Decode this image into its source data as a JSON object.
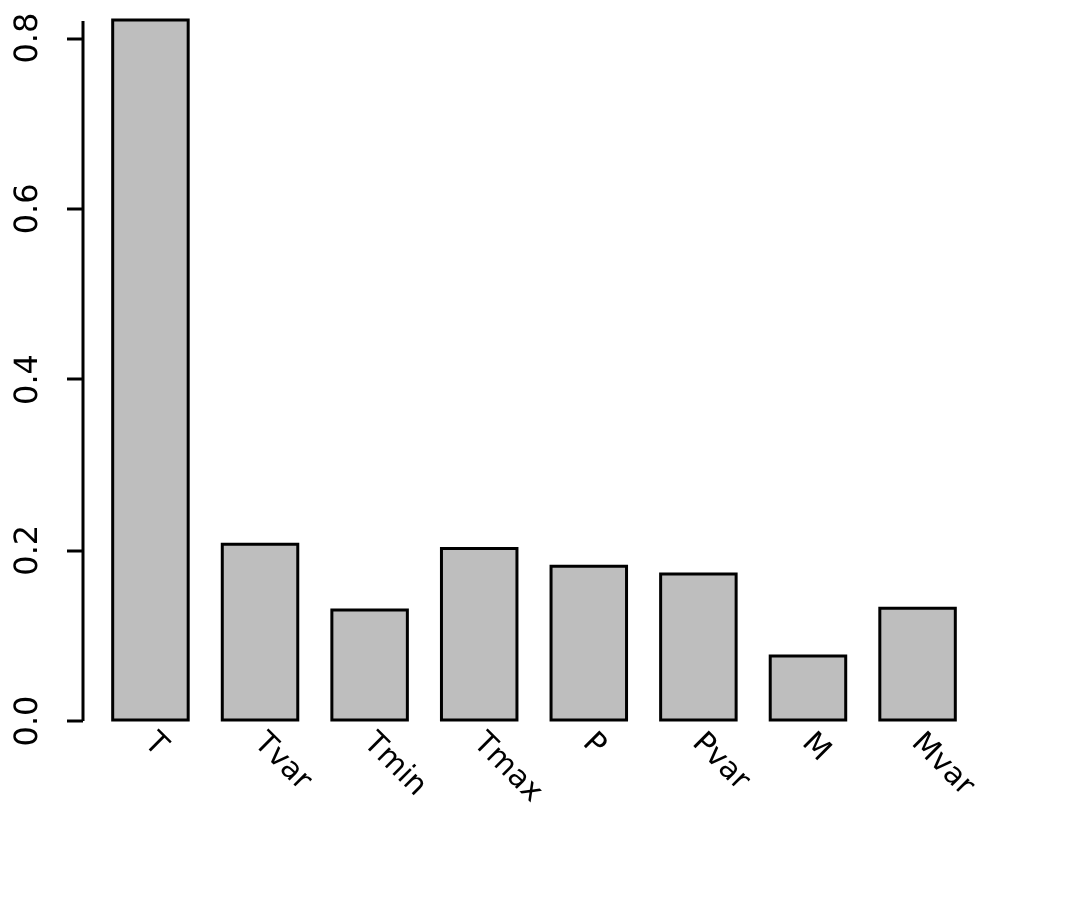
{
  "chart_data": {
    "type": "bar",
    "categories": [
      "T",
      "Tvar",
      "Tmin",
      "Tmax",
      "P",
      "Pvar",
      "M",
      "Mvar"
    ],
    "values": [
      0.82,
      0.206,
      0.129,
      0.201,
      0.18,
      0.171,
      0.075,
      0.131
    ],
    "color": "#bebebe",
    "ylim": [
      0,
      0.82
    ],
    "yticks": [
      {
        "value": 0,
        "label": "0.0"
      },
      {
        "value": 0.2,
        "label": "0.2"
      },
      {
        "value": 0.4,
        "label": "0.4"
      },
      {
        "value": 0.6,
        "label": "0.6"
      },
      {
        "value": 0.8,
        "label": "0.8"
      }
    ],
    "grid": false
  }
}
